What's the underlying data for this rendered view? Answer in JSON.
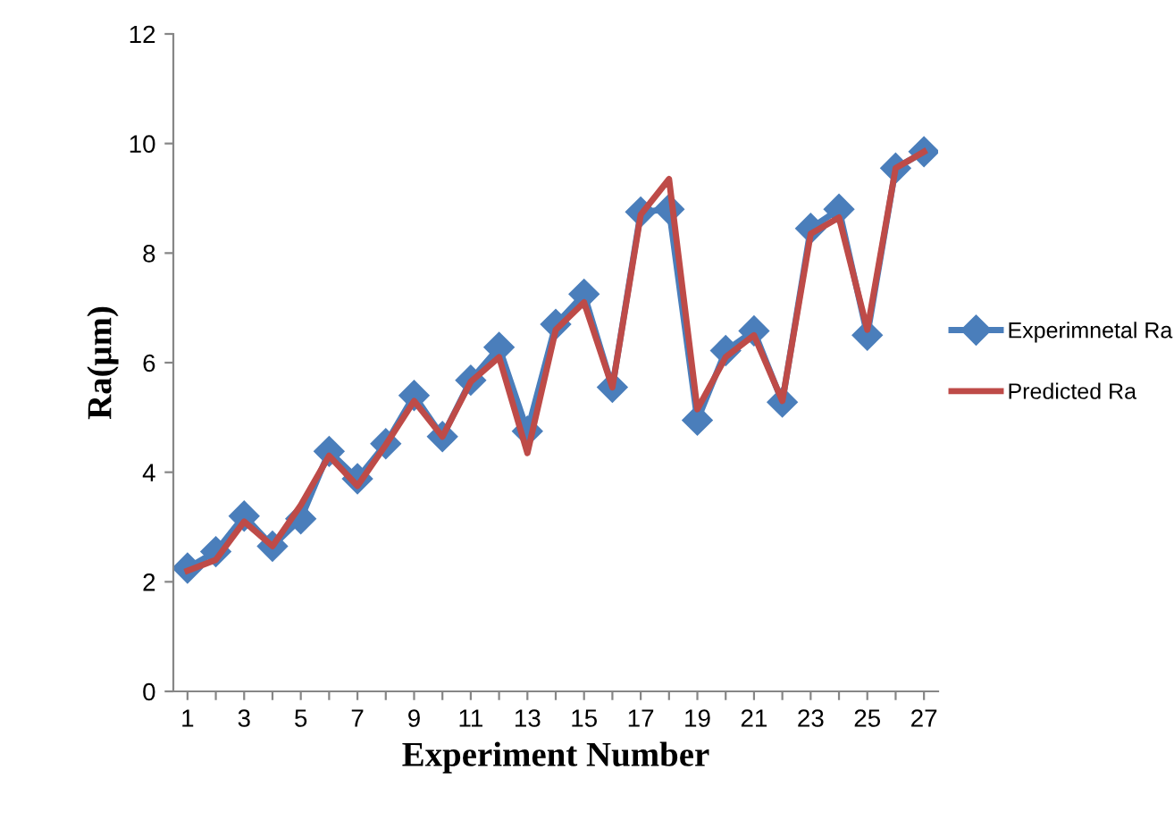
{
  "chart_data": {
    "type": "line",
    "xlabel": "Experiment Number",
    "ylabel": "Ra(μm)",
    "categories": [
      "1",
      null,
      "3",
      null,
      "5",
      null,
      "7",
      null,
      "9",
      null,
      "11",
      null,
      "13",
      null,
      "15",
      null,
      "17",
      null,
      "19",
      null,
      "21",
      null,
      "23",
      null,
      "25",
      null,
      "27"
    ],
    "series": [
      {
        "name": "Experimnetal Ra",
        "color": "#4a7ebb",
        "marker": "diamond",
        "values": [
          2.25,
          2.55,
          3.2,
          2.65,
          3.15,
          4.38,
          3.88,
          4.52,
          5.4,
          4.65,
          5.68,
          6.28,
          4.75,
          6.7,
          7.25,
          5.55,
          8.75,
          8.8,
          4.95,
          6.22,
          6.58,
          5.28,
          8.45,
          8.8,
          6.5,
          9.55,
          9.85
        ]
      },
      {
        "name": "Predicted Ra",
        "color": "#be4b48",
        "marker": "none",
        "values": [
          2.2,
          2.4,
          3.1,
          2.65,
          3.4,
          4.3,
          3.75,
          4.5,
          5.3,
          4.65,
          5.65,
          6.1,
          4.35,
          6.6,
          7.1,
          5.55,
          8.7,
          9.35,
          5.15,
          6.1,
          6.5,
          5.3,
          8.35,
          8.65,
          6.6,
          9.55,
          9.85
        ]
      }
    ],
    "ylim": [
      0,
      12
    ],
    "yticks": [
      0,
      2,
      4,
      6,
      8,
      10,
      12
    ],
    "grid": false,
    "legend": "right",
    "line_style": "solid"
  }
}
